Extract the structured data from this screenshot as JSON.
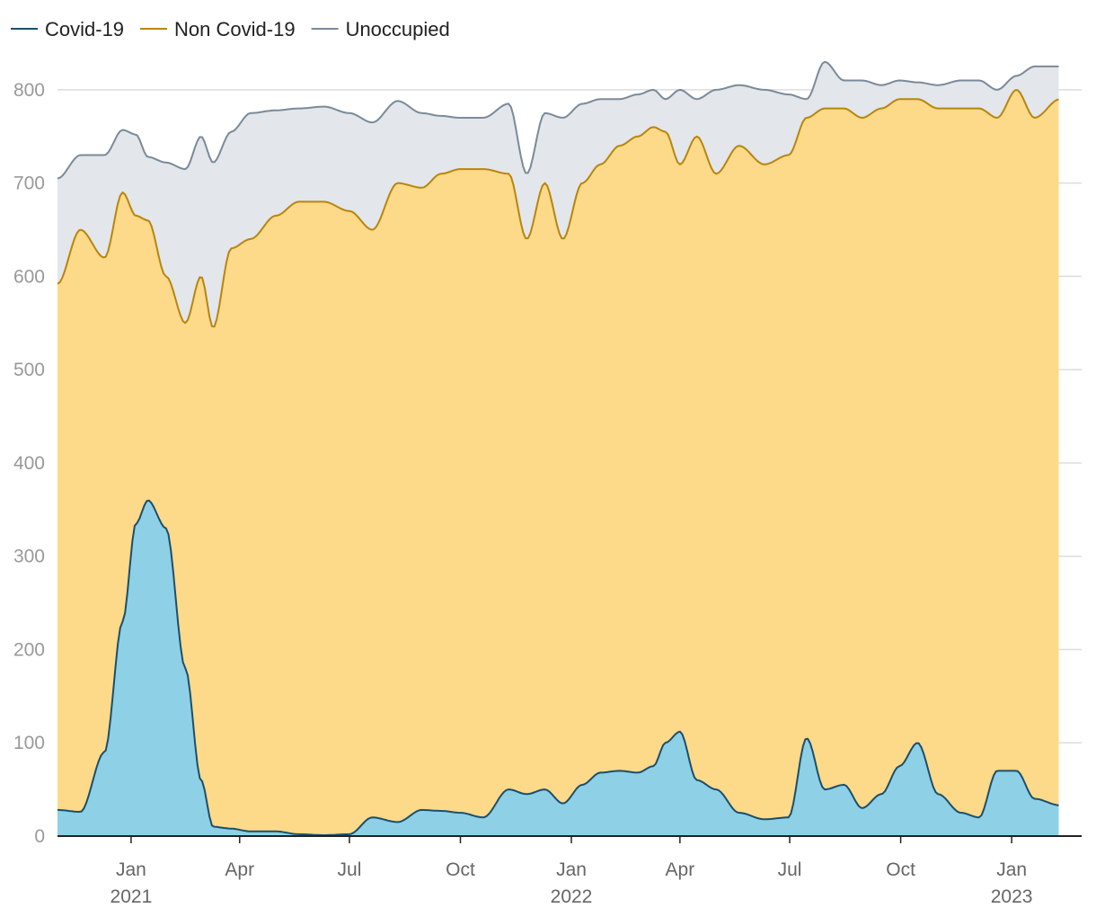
{
  "chart_data": {
    "type": "area",
    "stacked": true,
    "title": "",
    "xlabel": "",
    "ylabel": "",
    "ylim": [
      0,
      850
    ],
    "xlim": [
      "2020-11-01",
      "2023-02-28"
    ],
    "grid": true,
    "legend_placement": "top-left",
    "y_ticks": [
      "0",
      "100",
      "200",
      "300",
      "400",
      "500",
      "600",
      "700",
      "800"
    ],
    "x_ticks": [
      {
        "date": "2021-01-01",
        "month": "Jan",
        "year": "2021"
      },
      {
        "date": "2021-04-01",
        "month": "Apr",
        "year": ""
      },
      {
        "date": "2021-07-01",
        "month": "Jul",
        "year": ""
      },
      {
        "date": "2021-10-01",
        "month": "Oct",
        "year": ""
      },
      {
        "date": "2022-01-01",
        "month": "Jan",
        "year": "2022"
      },
      {
        "date": "2022-04-01",
        "month": "Apr",
        "year": ""
      },
      {
        "date": "2022-07-01",
        "month": "Jul",
        "year": ""
      },
      {
        "date": "2022-10-01",
        "month": "Oct",
        "year": ""
      },
      {
        "date": "2023-01-01",
        "month": "Jan",
        "year": "2023"
      }
    ],
    "dates": [
      "2020-11-01",
      "2020-11-20",
      "2020-12-10",
      "2020-12-25",
      "2021-01-05",
      "2021-01-15",
      "2021-01-30",
      "2021-02-15",
      "2021-02-28",
      "2021-03-10",
      "2021-03-25",
      "2021-04-10",
      "2021-05-01",
      "2021-05-20",
      "2021-06-10",
      "2021-07-01",
      "2021-07-20",
      "2021-08-10",
      "2021-08-30",
      "2021-09-15",
      "2021-10-01",
      "2021-10-20",
      "2021-11-10",
      "2021-11-25",
      "2021-12-10",
      "2021-12-25",
      "2022-01-10",
      "2022-01-25",
      "2022-02-10",
      "2022-02-25",
      "2022-03-10",
      "2022-03-20",
      "2022-04-01",
      "2022-04-15",
      "2022-05-01",
      "2022-05-20",
      "2022-06-10",
      "2022-06-30",
      "2022-07-15",
      "2022-07-30",
      "2022-08-15",
      "2022-08-30",
      "2022-09-15",
      "2022-09-30",
      "2022-10-15",
      "2022-11-01",
      "2022-11-20",
      "2022-12-05",
      "2022-12-20",
      "2023-01-05",
      "2023-01-20",
      "2023-02-10"
    ],
    "series": [
      {
        "name": "Covid-19",
        "color": "#1a4f6e",
        "fill": "#8ed0e6",
        "values": [
          28,
          26,
          90,
          230,
          335,
          360,
          330,
          180,
          60,
          10,
          8,
          5,
          5,
          2,
          1,
          2,
          20,
          15,
          28,
          27,
          25,
          20,
          50,
          45,
          50,
          35,
          55,
          68,
          70,
          68,
          75,
          100,
          112,
          60,
          50,
          25,
          18,
          20,
          105,
          50,
          55,
          30,
          45,
          75,
          100,
          45,
          25,
          20,
          70,
          70,
          40,
          33
        ]
      },
      {
        "name": "Non Covid-19",
        "color": "#b8860b",
        "fill": "#fdd98a",
        "values": [
          592,
          650,
          620,
          690,
          665,
          660,
          600,
          550,
          600,
          545,
          630,
          640,
          665,
          680,
          680,
          670,
          650,
          700,
          695,
          710,
          715,
          715,
          710,
          640,
          700,
          640,
          700,
          720,
          740,
          750,
          760,
          755,
          720,
          750,
          710,
          740,
          720,
          730,
          770,
          780,
          780,
          770,
          780,
          790,
          790,
          780,
          780,
          780,
          770,
          800,
          770,
          790
        ]
      },
      {
        "name": "Unoccupied",
        "color": "#7a8a99",
        "fill": "#e3e6ea",
        "values": [
          705,
          730,
          730,
          757,
          752,
          728,
          722,
          715,
          750,
          722,
          755,
          775,
          778,
          780,
          782,
          775,
          765,
          788,
          775,
          772,
          770,
          770,
          785,
          710,
          775,
          770,
          785,
          790,
          790,
          795,
          800,
          790,
          800,
          790,
          800,
          805,
          800,
          795,
          790,
          830,
          810,
          810,
          805,
          810,
          808,
          805,
          810,
          810,
          800,
          815,
          825,
          825
        ]
      }
    ]
  }
}
